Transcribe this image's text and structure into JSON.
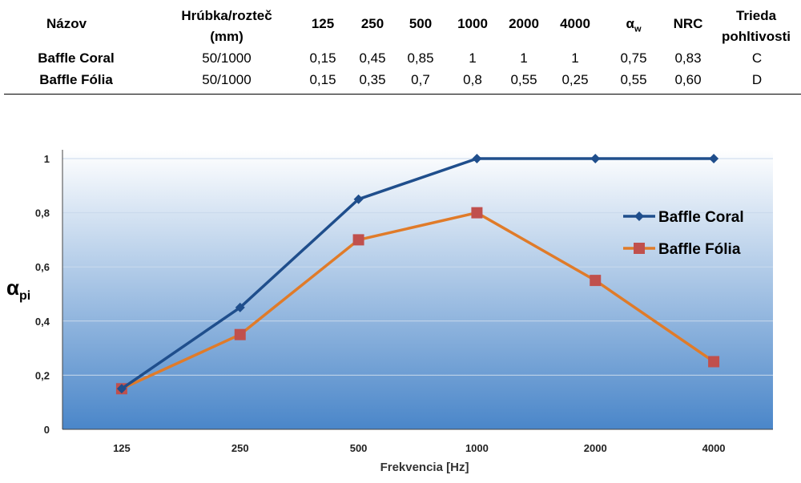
{
  "table": {
    "headers": {
      "name": "Názov",
      "thickness_1": "Hrúbka/rozteč",
      "thickness_2": "(mm)",
      "f125": "125",
      "f250": "250",
      "f500": "500",
      "f1000": "1000",
      "f2000": "2000",
      "f4000": "4000",
      "alpha": "α",
      "alpha_sub": "w",
      "nrc": "NRC",
      "class_1": "Trieda",
      "class_2": "pohltivosti"
    },
    "rows": [
      {
        "name": "Baffle Coral",
        "thickness": "50/1000",
        "f125": "0,15",
        "f250": "0,45",
        "f500": "0,85",
        "f1000": "1",
        "f2000": "1",
        "f4000": "1",
        "alpha_w": "0,75",
        "nrc": "0,83",
        "class": "C"
      },
      {
        "name": "Baffle Fólia",
        "thickness": "50/1000",
        "f125": "0,15",
        "f250": "0,35",
        "f500": "0,7",
        "f1000": "0,8",
        "f2000": "0,55",
        "f4000": "0,25",
        "alpha_w": "0,55",
        "nrc": "0,60",
        "class": "D"
      }
    ]
  },
  "chart_data": {
    "type": "line",
    "categories": [
      "125",
      "250",
      "500",
      "1000",
      "2000",
      "4000"
    ],
    "series": [
      {
        "name": "Baffle Coral",
        "values": [
          0.15,
          0.45,
          0.85,
          1,
          1,
          1
        ],
        "color": "#1f4e8c",
        "marker": "diamond"
      },
      {
        "name": "Baffle Fólia",
        "values": [
          0.15,
          0.35,
          0.7,
          0.8,
          0.55,
          0.25
        ],
        "color": "#e07b29",
        "marker": "square",
        "marker_color": "#c0504d"
      }
    ],
    "xlabel": "Frekvencia [Hz]",
    "ylabel": "α",
    "ylabel_sub": "pi",
    "ylim": [
      0,
      1
    ],
    "yticks": [
      "0",
      "0,2",
      "0,4",
      "0,6",
      "0,8",
      "1"
    ],
    "ytick_values": [
      0,
      0.2,
      0.4,
      0.6,
      0.8,
      1
    ],
    "grid": true,
    "legend_position": "right",
    "background_gradient": [
      "#ffffff",
      "#4a86c9"
    ]
  }
}
